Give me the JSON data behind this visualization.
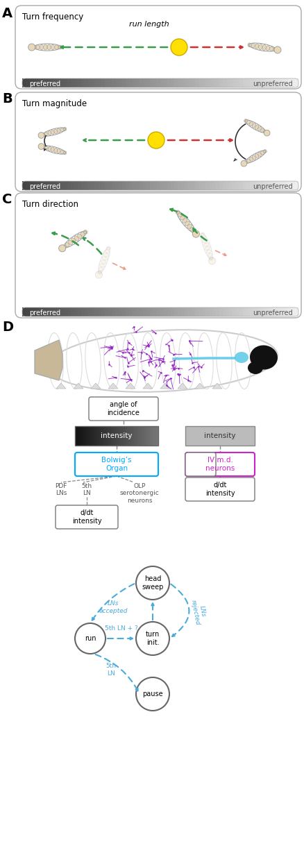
{
  "panel_A_title": "Turn frequency",
  "panel_A_sublabel": "run length",
  "panel_B_title": "Turn magnitude",
  "panel_C_title": "Turn direction",
  "preferred_label": "preferred",
  "unpreferred_label": "unpreferred",
  "angle_of_incidence": "angle of\nincidence",
  "intensity_dark": "intensity",
  "intensity_light": "intensity",
  "bolwigs_organ": "Bolwig’s\nOrgan",
  "iv_neurons": "IV m.d.\nneurons",
  "olp_serotonergic": "OLP\nserotonergic\nneurons",
  "pdf_lns": "PDF\nLNs",
  "fifth_ln_upper": "5th\nLN",
  "ddt_intensity_left": "d/dt\nintensity",
  "ddt_intensity_right": "d/dt\nintensity",
  "head_sweep": "head\nsweep",
  "turn_init": "turn\ninit.",
  "run_label": "run",
  "pause_label": "pause",
  "lns_accepted": "LNs\naccepted",
  "lns_rejected": "LNs\nrejected",
  "fifth_ln_plus": "5th LN + ?",
  "fifth_ln_lower": "5th\nLN",
  "blue_color": "#4AABDB",
  "green_color": "#3A9B4A",
  "red_color": "#CC3333",
  "yellow_color": "#FFE000",
  "purple_color": "#9B30D0",
  "larva_fill": "#E8D8B8",
  "larva_edge": "#999999",
  "larva_alpha_faded": 0.25,
  "panel_box_edge": "#AAAAAA",
  "gradient_dark": "#444444",
  "gradient_light": "#F0F0F0",
  "bolwigs_color": "#00AAFF",
  "iv_color": "#CC22CC",
  "circuit_text_color": "#555555"
}
